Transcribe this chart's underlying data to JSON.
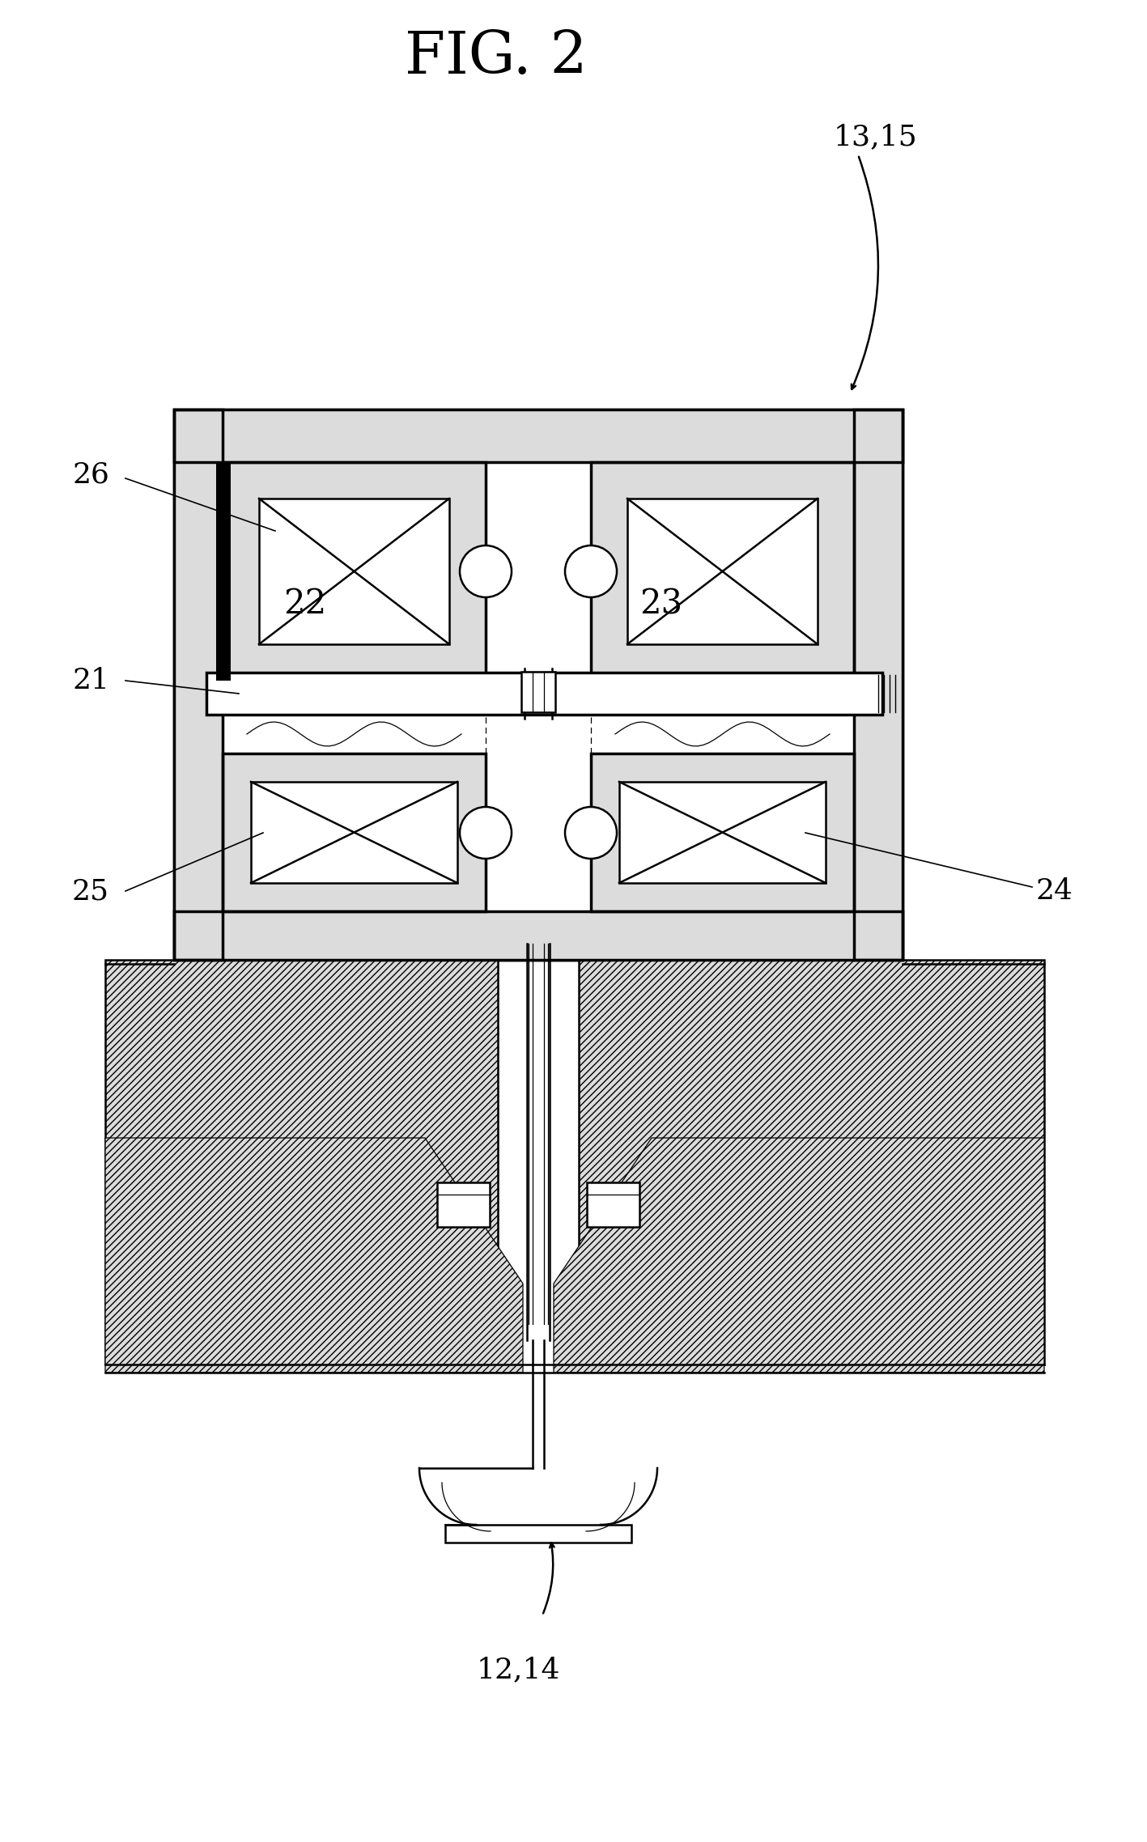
{
  "title": "FIG. 2",
  "label_13_15": "13,15",
  "label_12_14": "12,14",
  "label_21": "21",
  "label_22": "22",
  "label_23": "23",
  "label_24": "24",
  "label_25": "25",
  "label_26": "26",
  "bg_color": "#ffffff",
  "line_color": "#000000",
  "title_fontsize": 52,
  "label_fontsize": 26,
  "lw_main": 1.8,
  "lw_thin": 0.9,
  "lw_thick": 2.5
}
